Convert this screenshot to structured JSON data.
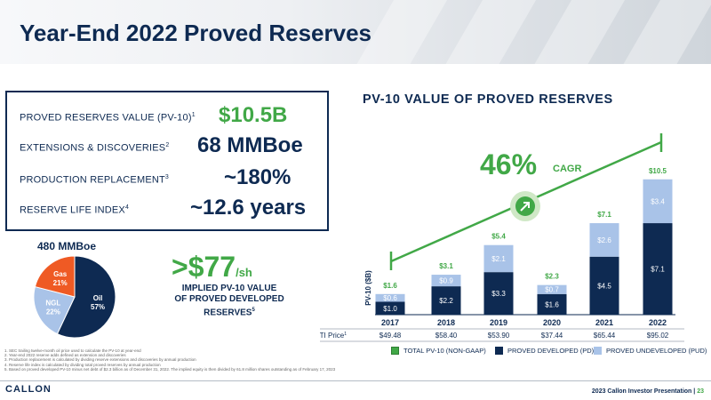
{
  "title": "Year-End 2022 Proved Reserves",
  "kpis": [
    {
      "label": "PROVED RESERVES VALUE (PV-10)",
      "sup": "1",
      "value": "$10.5B"
    },
    {
      "label": "EXTENSIONS & DISCOVERIES",
      "sup": "2",
      "value": "68 MMBoe"
    },
    {
      "label": "PRODUCTION REPLACEMENT",
      "sup": "3",
      "value": "~180%"
    },
    {
      "label": "RESERVE LIFE INDEX",
      "sup": "4",
      "value": "~12.6 years"
    }
  ],
  "pie": {
    "title": "480 MMBoe",
    "slices": [
      {
        "name": "Oil",
        "pct": "57%",
        "value": 57,
        "color": "#0e2a52"
      },
      {
        "name": "NGL",
        "pct": "22%",
        "value": 22,
        "color": "#a9c3e8"
      },
      {
        "name": "Gas",
        "pct": "21%",
        "value": 21,
        "color": "#ef5a24"
      }
    ]
  },
  "implied": {
    "value": ">$77",
    "unit": "/sh",
    "line1": "IMPLIED PV-10 VALUE",
    "line2": "OF PROVED DEVELOPED",
    "line3": "RESERVES",
    "sup": "5"
  },
  "chart_title": "PV-10 VALUE OF PROVED RESERVES",
  "cagr": {
    "value": "46%",
    "label": "CAGR"
  },
  "chart_data": {
    "type": "bar",
    "stacked": true,
    "ylabel": "PV-10 ($B)",
    "categories": [
      "2017",
      "2018",
      "2019",
      "2020",
      "2021",
      "2022"
    ],
    "series": [
      {
        "name": "PROVED DEVELOPED (PD)",
        "color": "#0e2a52",
        "values": [
          1.0,
          2.2,
          3.3,
          1.6,
          4.5,
          7.1
        ],
        "labels": [
          "$1.0",
          "$2.2",
          "$3.3",
          "$1.6",
          "$4.5",
          "$7.1"
        ]
      },
      {
        "name": "PROVED UNDEVELOPED (PUD)",
        "color": "#a9c3e8",
        "values": [
          0.6,
          0.9,
          2.1,
          0.7,
          2.6,
          3.4
        ],
        "labels": [
          "$0.6",
          "$0.9",
          "$2.1",
          "$0.7",
          "$2.6",
          "$3.4"
        ]
      }
    ],
    "totals": [
      "$1.6",
      "$3.1",
      "$5.4",
      "$2.3",
      "$7.1",
      "$10.5"
    ],
    "total_series_name": "TOTAL PV-10 (NON-GAAP)",
    "total_color": "#41a847",
    "wti_label": "WTI Price",
    "wti_sup": "1",
    "wti": [
      "$49.48",
      "$58.40",
      "$53.90",
      "$37.44",
      "$65.44",
      "$95.02"
    ],
    "ylim": [
      0,
      11
    ]
  },
  "footnotes": [
    "1. SEC trailing twelve-month oil price used to calculate the PV-10 at year-end",
    "2. Year-end 2022 reserve adds defined as extension and discoveries",
    "3. Production replacement is calculated by dividing reserve extensions and discoveries by annual production",
    "4. Reserve life index is calculated by dividing total proved reserves by annual production",
    "5. Based on proved developed PV-10 minus net debt of $2.3 billion as of December 31, 2022. The implied equity is then divided by 61.8 million shares outstanding as of February 17, 2023"
  ],
  "logo": "CALLON",
  "footer": {
    "text": "2023 Callon Investor Presentation",
    "sep": " | ",
    "page": "23"
  }
}
